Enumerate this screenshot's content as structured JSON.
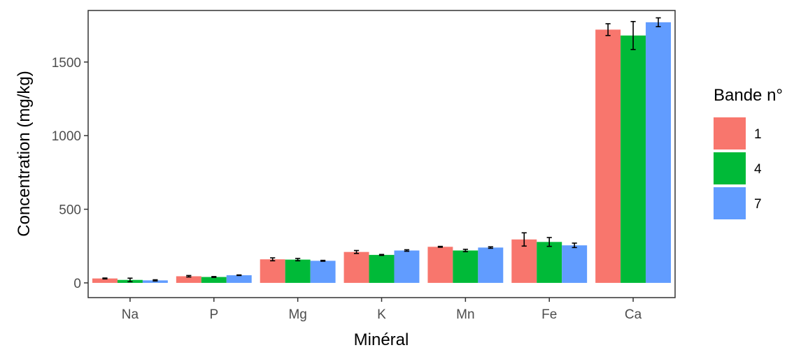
{
  "chart_data": {
    "type": "bar",
    "xlabel": "Minéral",
    "ylabel": "Concentration (mg/kg)",
    "categories": [
      "Na",
      "P",
      "Mg",
      "K",
      "Mn",
      "Fe",
      "Ca"
    ],
    "ylim": [
      -100,
      1850
    ],
    "yticks": [
      0,
      500,
      1000,
      1500
    ],
    "legend": {
      "title": "Bande n°",
      "position": "right"
    },
    "series": [
      {
        "name": "1",
        "color": "#F8766D",
        "values": [
          30,
          45,
          160,
          210,
          245,
          295,
          1720
        ],
        "errors": [
          3,
          5,
          10,
          10,
          3,
          45,
          40
        ]
      },
      {
        "name": "4",
        "color": "#00BA38",
        "values": [
          20,
          40,
          158,
          190,
          220,
          278,
          1680
        ],
        "errors": [
          12,
          3,
          8,
          3,
          8,
          30,
          95
        ]
      },
      {
        "name": "7",
        "color": "#619CFF",
        "values": [
          17,
          52,
          150,
          220,
          240,
          255,
          1770
        ],
        "errors": [
          4,
          2,
          3,
          5,
          5,
          15,
          30
        ]
      }
    ],
    "grid": false
  }
}
